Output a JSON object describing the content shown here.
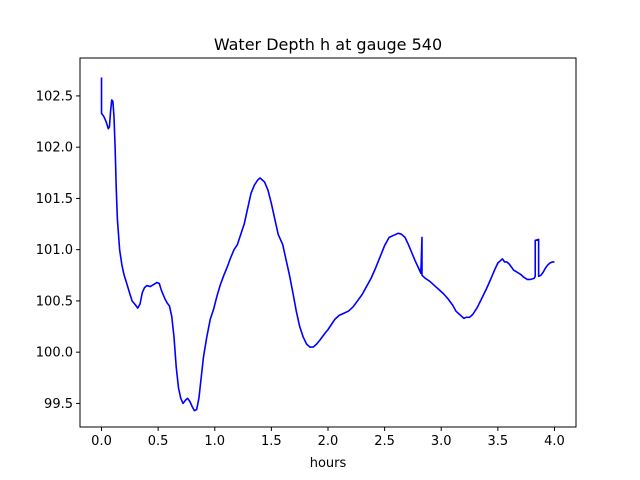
{
  "chart_data": {
    "type": "line",
    "title": "Water Depth h at gauge 540",
    "xlabel": "hours",
    "ylabel": "",
    "xlim": [
      -0.19,
      4.19
    ],
    "ylim": [
      99.27,
      102.87
    ],
    "xticks": [
      0.0,
      0.5,
      1.0,
      1.5,
      2.0,
      2.5,
      3.0,
      3.5,
      4.0
    ],
    "xtick_labels": [
      "0.0",
      "0.5",
      "1.0",
      "1.5",
      "2.0",
      "2.5",
      "3.0",
      "3.5",
      "4.0"
    ],
    "yticks": [
      99.5,
      100.0,
      100.5,
      101.0,
      101.5,
      102.0,
      102.5
    ],
    "ytick_labels": [
      "99.5",
      "100.0",
      "100.5",
      "101.0",
      "101.5",
      "102.0",
      "102.5"
    ],
    "grid": false,
    "series": [
      {
        "name": "",
        "color": "#0000ff",
        "points": [
          [
            0.0,
            102.68
          ],
          [
            0.0,
            102.33
          ],
          [
            0.02,
            102.3
          ],
          [
            0.04,
            102.25
          ],
          [
            0.06,
            102.18
          ],
          [
            0.07,
            102.2
          ],
          [
            0.08,
            102.35
          ],
          [
            0.09,
            102.46
          ],
          [
            0.1,
            102.45
          ],
          [
            0.11,
            102.3
          ],
          [
            0.12,
            102.0
          ],
          [
            0.13,
            101.6
          ],
          [
            0.14,
            101.3
          ],
          [
            0.16,
            101.0
          ],
          [
            0.18,
            100.85
          ],
          [
            0.2,
            100.75
          ],
          [
            0.22,
            100.68
          ],
          [
            0.25,
            100.57
          ],
          [
            0.27,
            100.5
          ],
          [
            0.3,
            100.46
          ],
          [
            0.32,
            100.43
          ],
          [
            0.34,
            100.47
          ],
          [
            0.36,
            100.58
          ],
          [
            0.38,
            100.63
          ],
          [
            0.4,
            100.65
          ],
          [
            0.43,
            100.64
          ],
          [
            0.46,
            100.66
          ],
          [
            0.49,
            100.68
          ],
          [
            0.51,
            100.67
          ],
          [
            0.53,
            100.6
          ],
          [
            0.56,
            100.52
          ],
          [
            0.58,
            100.48
          ],
          [
            0.6,
            100.45
          ],
          [
            0.62,
            100.35
          ],
          [
            0.64,
            100.15
          ],
          [
            0.66,
            99.85
          ],
          [
            0.68,
            99.65
          ],
          [
            0.7,
            99.55
          ],
          [
            0.72,
            99.5
          ],
          [
            0.74,
            99.53
          ],
          [
            0.76,
            99.55
          ],
          [
            0.78,
            99.52
          ],
          [
            0.8,
            99.47
          ],
          [
            0.82,
            99.43
          ],
          [
            0.84,
            99.44
          ],
          [
            0.86,
            99.55
          ],
          [
            0.88,
            99.75
          ],
          [
            0.9,
            99.95
          ],
          [
            0.93,
            100.15
          ],
          [
            0.96,
            100.32
          ],
          [
            0.99,
            100.42
          ],
          [
            1.02,
            100.55
          ],
          [
            1.05,
            100.66
          ],
          [
            1.08,
            100.75
          ],
          [
            1.11,
            100.83
          ],
          [
            1.14,
            100.92
          ],
          [
            1.17,
            101.0
          ],
          [
            1.2,
            101.05
          ],
          [
            1.23,
            101.15
          ],
          [
            1.26,
            101.25
          ],
          [
            1.29,
            101.4
          ],
          [
            1.32,
            101.55
          ],
          [
            1.35,
            101.63
          ],
          [
            1.38,
            101.68
          ],
          [
            1.4,
            101.7
          ],
          [
            1.42,
            101.68
          ],
          [
            1.44,
            101.66
          ],
          [
            1.47,
            101.58
          ],
          [
            1.5,
            101.45
          ],
          [
            1.53,
            101.3
          ],
          [
            1.56,
            101.15
          ],
          [
            1.6,
            101.05
          ],
          [
            1.63,
            100.9
          ],
          [
            1.66,
            100.75
          ],
          [
            1.69,
            100.58
          ],
          [
            1.72,
            100.4
          ],
          [
            1.75,
            100.25
          ],
          [
            1.78,
            100.15
          ],
          [
            1.81,
            100.08
          ],
          [
            1.84,
            100.05
          ],
          [
            1.87,
            100.05
          ],
          [
            1.9,
            100.08
          ],
          [
            1.93,
            100.12
          ],
          [
            1.97,
            100.18
          ],
          [
            2.0,
            100.22
          ],
          [
            2.03,
            100.27
          ],
          [
            2.06,
            100.32
          ],
          [
            2.1,
            100.36
          ],
          [
            2.14,
            100.38
          ],
          [
            2.18,
            100.4
          ],
          [
            2.22,
            100.44
          ],
          [
            2.26,
            100.5
          ],
          [
            2.3,
            100.56
          ],
          [
            2.34,
            100.64
          ],
          [
            2.38,
            100.72
          ],
          [
            2.42,
            100.82
          ],
          [
            2.46,
            100.93
          ],
          [
            2.5,
            101.04
          ],
          [
            2.54,
            101.12
          ],
          [
            2.58,
            101.14
          ],
          [
            2.6,
            101.15
          ],
          [
            2.62,
            101.16
          ],
          [
            2.65,
            101.15
          ],
          [
            2.68,
            101.12
          ],
          [
            2.71,
            101.05
          ],
          [
            2.74,
            100.97
          ],
          [
            2.77,
            100.89
          ],
          [
            2.8,
            100.82
          ],
          [
            2.82,
            100.77
          ],
          [
            2.83,
            101.12
          ],
          [
            2.83,
            100.75
          ],
          [
            2.86,
            100.72
          ],
          [
            2.9,
            100.69
          ],
          [
            2.94,
            100.65
          ],
          [
            2.98,
            100.61
          ],
          [
            3.02,
            100.57
          ],
          [
            3.06,
            100.52
          ],
          [
            3.1,
            100.46
          ],
          [
            3.13,
            100.4
          ],
          [
            3.16,
            100.37
          ],
          [
            3.18,
            100.35
          ],
          [
            3.2,
            100.33
          ],
          [
            3.22,
            100.34
          ],
          [
            3.25,
            100.34
          ],
          [
            3.28,
            100.37
          ],
          [
            3.32,
            100.44
          ],
          [
            3.36,
            100.53
          ],
          [
            3.4,
            100.62
          ],
          [
            3.44,
            100.72
          ],
          [
            3.47,
            100.8
          ],
          [
            3.5,
            100.87
          ],
          [
            3.52,
            100.89
          ],
          [
            3.54,
            100.91
          ],
          [
            3.56,
            100.88
          ],
          [
            3.58,
            100.88
          ],
          [
            3.6,
            100.86
          ],
          [
            3.62,
            100.83
          ],
          [
            3.64,
            100.8
          ],
          [
            3.67,
            100.78
          ],
          [
            3.7,
            100.76
          ],
          [
            3.73,
            100.73
          ],
          [
            3.76,
            100.71
          ],
          [
            3.79,
            100.71
          ],
          [
            3.82,
            100.72
          ],
          [
            3.83,
            100.74
          ],
          [
            3.83,
            101.09
          ],
          [
            3.86,
            101.1
          ],
          [
            3.86,
            100.74
          ],
          [
            3.88,
            100.75
          ],
          [
            3.9,
            100.78
          ],
          [
            3.92,
            100.82
          ],
          [
            3.94,
            100.85
          ],
          [
            3.96,
            100.87
          ],
          [
            3.98,
            100.88
          ],
          [
            4.0,
            100.88
          ]
        ]
      }
    ]
  }
}
